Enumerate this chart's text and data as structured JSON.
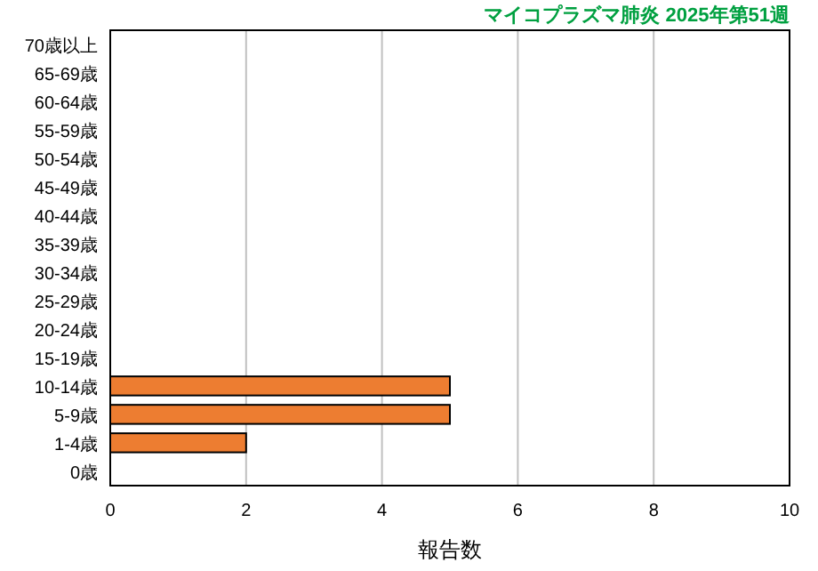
{
  "chart_data": {
    "type": "bar",
    "orientation": "horizontal",
    "title": "マイコプラズマ肺炎 2025年第51週",
    "xlabel": "報告数",
    "categories": [
      "70歳以上",
      "65-69歳",
      "60-64歳",
      "55-59歳",
      "50-54歳",
      "45-49歳",
      "40-44歳",
      "35-39歳",
      "30-34歳",
      "25-29歳",
      "20-24歳",
      "15-19歳",
      "10-14歳",
      "5-9歳",
      "1-4歳",
      "0歳"
    ],
    "values": [
      0,
      0,
      0,
      0,
      0,
      0,
      0,
      0,
      0,
      0,
      0,
      0,
      5,
      5,
      2,
      0
    ],
    "color": "#ed7d31",
    "xlim": [
      0,
      10
    ],
    "xticks": [
      0,
      2,
      4,
      6,
      8,
      10
    ],
    "grid": "x"
  }
}
